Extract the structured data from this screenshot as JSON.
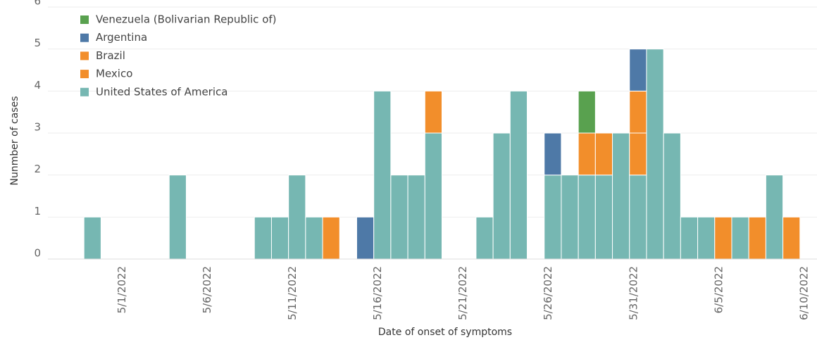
{
  "chart_data": {
    "type": "stacked-bar",
    "x_label": "Date of onset of symptoms",
    "y_label": "Nunmber of cases",
    "categories": [
      null,
      null,
      null,
      "5/1/2022",
      null,
      null,
      null,
      null,
      "5/6/2022",
      null,
      null,
      null,
      null,
      "5/11/2022",
      null,
      null,
      null,
      null,
      "5/16/2022",
      null,
      null,
      null,
      null,
      "5/21/2022",
      null,
      null,
      null,
      null,
      "5/26/2022",
      null,
      null,
      null,
      null,
      "5/31/2022",
      null,
      null,
      null,
      null,
      "6/5/2022",
      null,
      null,
      null,
      null,
      "6/10/2022"
    ],
    "series": [
      {
        "name": "Venezuela (Bolivarian Republic of)",
        "color": "#59a14f",
        "values": [
          0,
          0,
          0,
          0,
          0,
          0,
          0,
          0,
          0,
          0,
          0,
          0,
          0,
          0,
          0,
          0,
          0,
          0,
          0,
          0,
          0,
          0,
          0,
          0,
          0,
          0,
          0,
          0,
          0,
          0,
          1,
          0,
          0,
          0,
          0,
          0,
          0,
          0,
          0,
          0,
          0,
          0,
          0,
          0
        ]
      },
      {
        "name": "Argentina",
        "color": "#4e79a7",
        "values": [
          0,
          0,
          0,
          0,
          0,
          0,
          0,
          0,
          0,
          0,
          0,
          0,
          0,
          0,
          0,
          0,
          0,
          1,
          0,
          0,
          0,
          0,
          0,
          0,
          0,
          0,
          0,
          0,
          1,
          0,
          0,
          0,
          0,
          1,
          0,
          0,
          0,
          0,
          0,
          0,
          0,
          0,
          0,
          0
        ]
      },
      {
        "name": "Brazil",
        "color": "#f28e2b",
        "values": [
          0,
          0,
          0,
          0,
          0,
          0,
          0,
          0,
          0,
          0,
          0,
          0,
          0,
          0,
          0,
          0,
          0,
          0,
          0,
          0,
          0,
          0,
          0,
          0,
          0,
          0,
          0,
          0,
          0,
          0,
          0,
          0,
          0,
          1,
          0,
          0,
          0,
          0,
          0,
          0,
          0,
          0,
          0,
          0
        ]
      },
      {
        "name": "Mexico",
        "color": "#f28e2b",
        "values": [
          0,
          0,
          0,
          0,
          0,
          0,
          0,
          0,
          0,
          0,
          0,
          0,
          0,
          0,
          0,
          1,
          0,
          0,
          0,
          0,
          0,
          1,
          0,
          0,
          0,
          0,
          0,
          0,
          0,
          0,
          1,
          1,
          0,
          1,
          0,
          0,
          0,
          0,
          1,
          0,
          1,
          0,
          1,
          0
        ]
      },
      {
        "name": "United States of America",
        "color": "#76b7b2",
        "values": [
          0,
          1,
          0,
          0,
          0,
          0,
          2,
          0,
          0,
          0,
          0,
          1,
          1,
          2,
          1,
          0,
          0,
          0,
          4,
          2,
          2,
          3,
          0,
          0,
          1,
          3,
          4,
          0,
          2,
          2,
          2,
          2,
          3,
          2,
          5,
          3,
          1,
          1,
          0,
          1,
          0,
          2,
          0,
          0
        ]
      }
    ],
    "ylim": [
      0,
      6
    ],
    "yticks": [
      0,
      1,
      2,
      3,
      4,
      5,
      6
    ],
    "grid": true
  }
}
